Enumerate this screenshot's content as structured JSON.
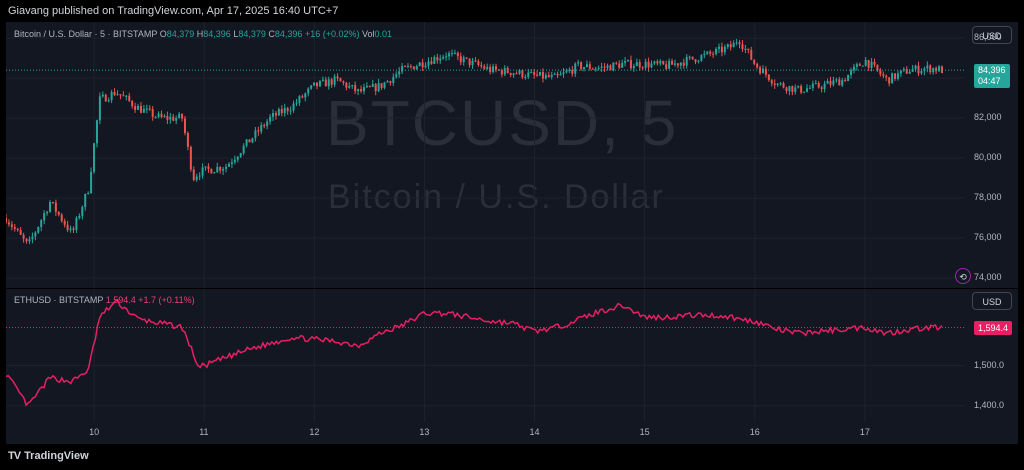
{
  "header": {
    "publisher": "Giavang published on TradingView.com, Apr 17, 2025 16:40 UTC+7"
  },
  "top_pane": {
    "legend": {
      "symbol": "Bitcoin / U.S. Dollar · 5 · BITSTAMP",
      "o_label": "O",
      "o": "84,379",
      "h_label": "H",
      "h": "84,396",
      "l_label": "L",
      "l": "84,379",
      "c_label": "C",
      "c": "84,396",
      "change": "+16 (+0.02%)",
      "vol_label": "Vol",
      "vol": "0.01"
    },
    "currency": "USD",
    "watermark_symbol": "BTCUSD, 5",
    "watermark_name": "Bitcoin / U.S. Dollar",
    "last_price": "84,396",
    "countdown": "04:47",
    "y_ticks": [
      "86,000",
      "84,000",
      "82,000",
      "80,000",
      "78,000",
      "76,000",
      "74,000"
    ]
  },
  "bottom_pane": {
    "legend": {
      "symbol": "ETHUSD · BITSTAMP",
      "price": "1,594.4",
      "change": "+1.7 (+0.11%)"
    },
    "currency": "USD",
    "last_price": "1,594.4",
    "y_ticks": [
      "1,500.0",
      "1,400.0"
    ]
  },
  "x_ticks": [
    "10",
    "11",
    "12",
    "13",
    "14",
    "15",
    "16",
    "17"
  ],
  "footer": {
    "brand": "TradingView"
  },
  "colors": {
    "up": "#26a69a",
    "down": "#ef5350",
    "eth_line": "#e91e63",
    "last_price_bg": "#26a69a"
  },
  "chart_data": [
    {
      "type": "candlestick",
      "symbol": "BTCUSD",
      "ylim": [
        73500,
        86800
      ],
      "x_unit": "day of April 2025 (fractional)",
      "x": [
        9.2,
        9.4,
        9.6,
        9.8,
        9.95,
        10.05,
        10.2,
        10.4,
        10.6,
        10.8,
        10.9,
        10.95,
        11.2,
        11.4,
        11.6,
        11.8,
        12.0,
        12.2,
        12.4,
        12.6,
        12.8,
        13.0,
        13.2,
        13.4,
        13.6,
        13.8,
        14.0,
        14.2,
        14.4,
        14.6,
        14.8,
        15.0,
        15.2,
        15.4,
        15.6,
        15.8,
        15.85,
        16.0,
        16.2,
        16.4,
        16.6,
        16.8,
        17.0,
        17.2,
        17.4,
        17.6,
        17.7
      ],
      "y": [
        77000,
        75600,
        77800,
        76200,
        78500,
        82900,
        83300,
        82500,
        82000,
        82000,
        79000,
        79300,
        79600,
        80800,
        82000,
        82600,
        83600,
        83900,
        83300,
        83600,
        84400,
        84800,
        85200,
        84800,
        84400,
        84300,
        84100,
        84000,
        84600,
        84500,
        84700,
        84700,
        84600,
        84900,
        85200,
        85600,
        86000,
        84700,
        83700,
        83400,
        83600,
        83900,
        84900,
        83900,
        84400,
        84500,
        84396
      ]
    },
    {
      "type": "line",
      "symbol": "ETHUSD",
      "ylim": [
        1360,
        1690
      ],
      "x_unit": "day of April 2025 (fractional)",
      "x": [
        9.2,
        9.4,
        9.6,
        9.8,
        9.95,
        10.05,
        10.2,
        10.4,
        10.6,
        10.8,
        10.9,
        10.95,
        11.2,
        11.4,
        11.6,
        11.8,
        12.0,
        12.2,
        12.4,
        12.6,
        12.8,
        13.0,
        13.2,
        13.4,
        13.6,
        13.8,
        14.0,
        14.2,
        14.4,
        14.6,
        14.8,
        15.0,
        15.2,
        15.4,
        15.6,
        15.8,
        15.85,
        16.0,
        16.2,
        16.4,
        16.6,
        16.8,
        17.0,
        17.2,
        17.4,
        17.6,
        17.7
      ],
      "y": [
        1480,
        1400,
        1470,
        1460,
        1490,
        1620,
        1660,
        1615,
        1605,
        1595,
        1530,
        1495,
        1520,
        1540,
        1555,
        1570,
        1565,
        1560,
        1550,
        1580,
        1600,
        1630,
        1630,
        1620,
        1610,
        1605,
        1585,
        1595,
        1615,
        1635,
        1650,
        1620,
        1620,
        1625,
        1625,
        1620,
        1615,
        1610,
        1590,
        1580,
        1585,
        1590,
        1595,
        1580,
        1590,
        1595,
        1594.4
      ]
    }
  ]
}
